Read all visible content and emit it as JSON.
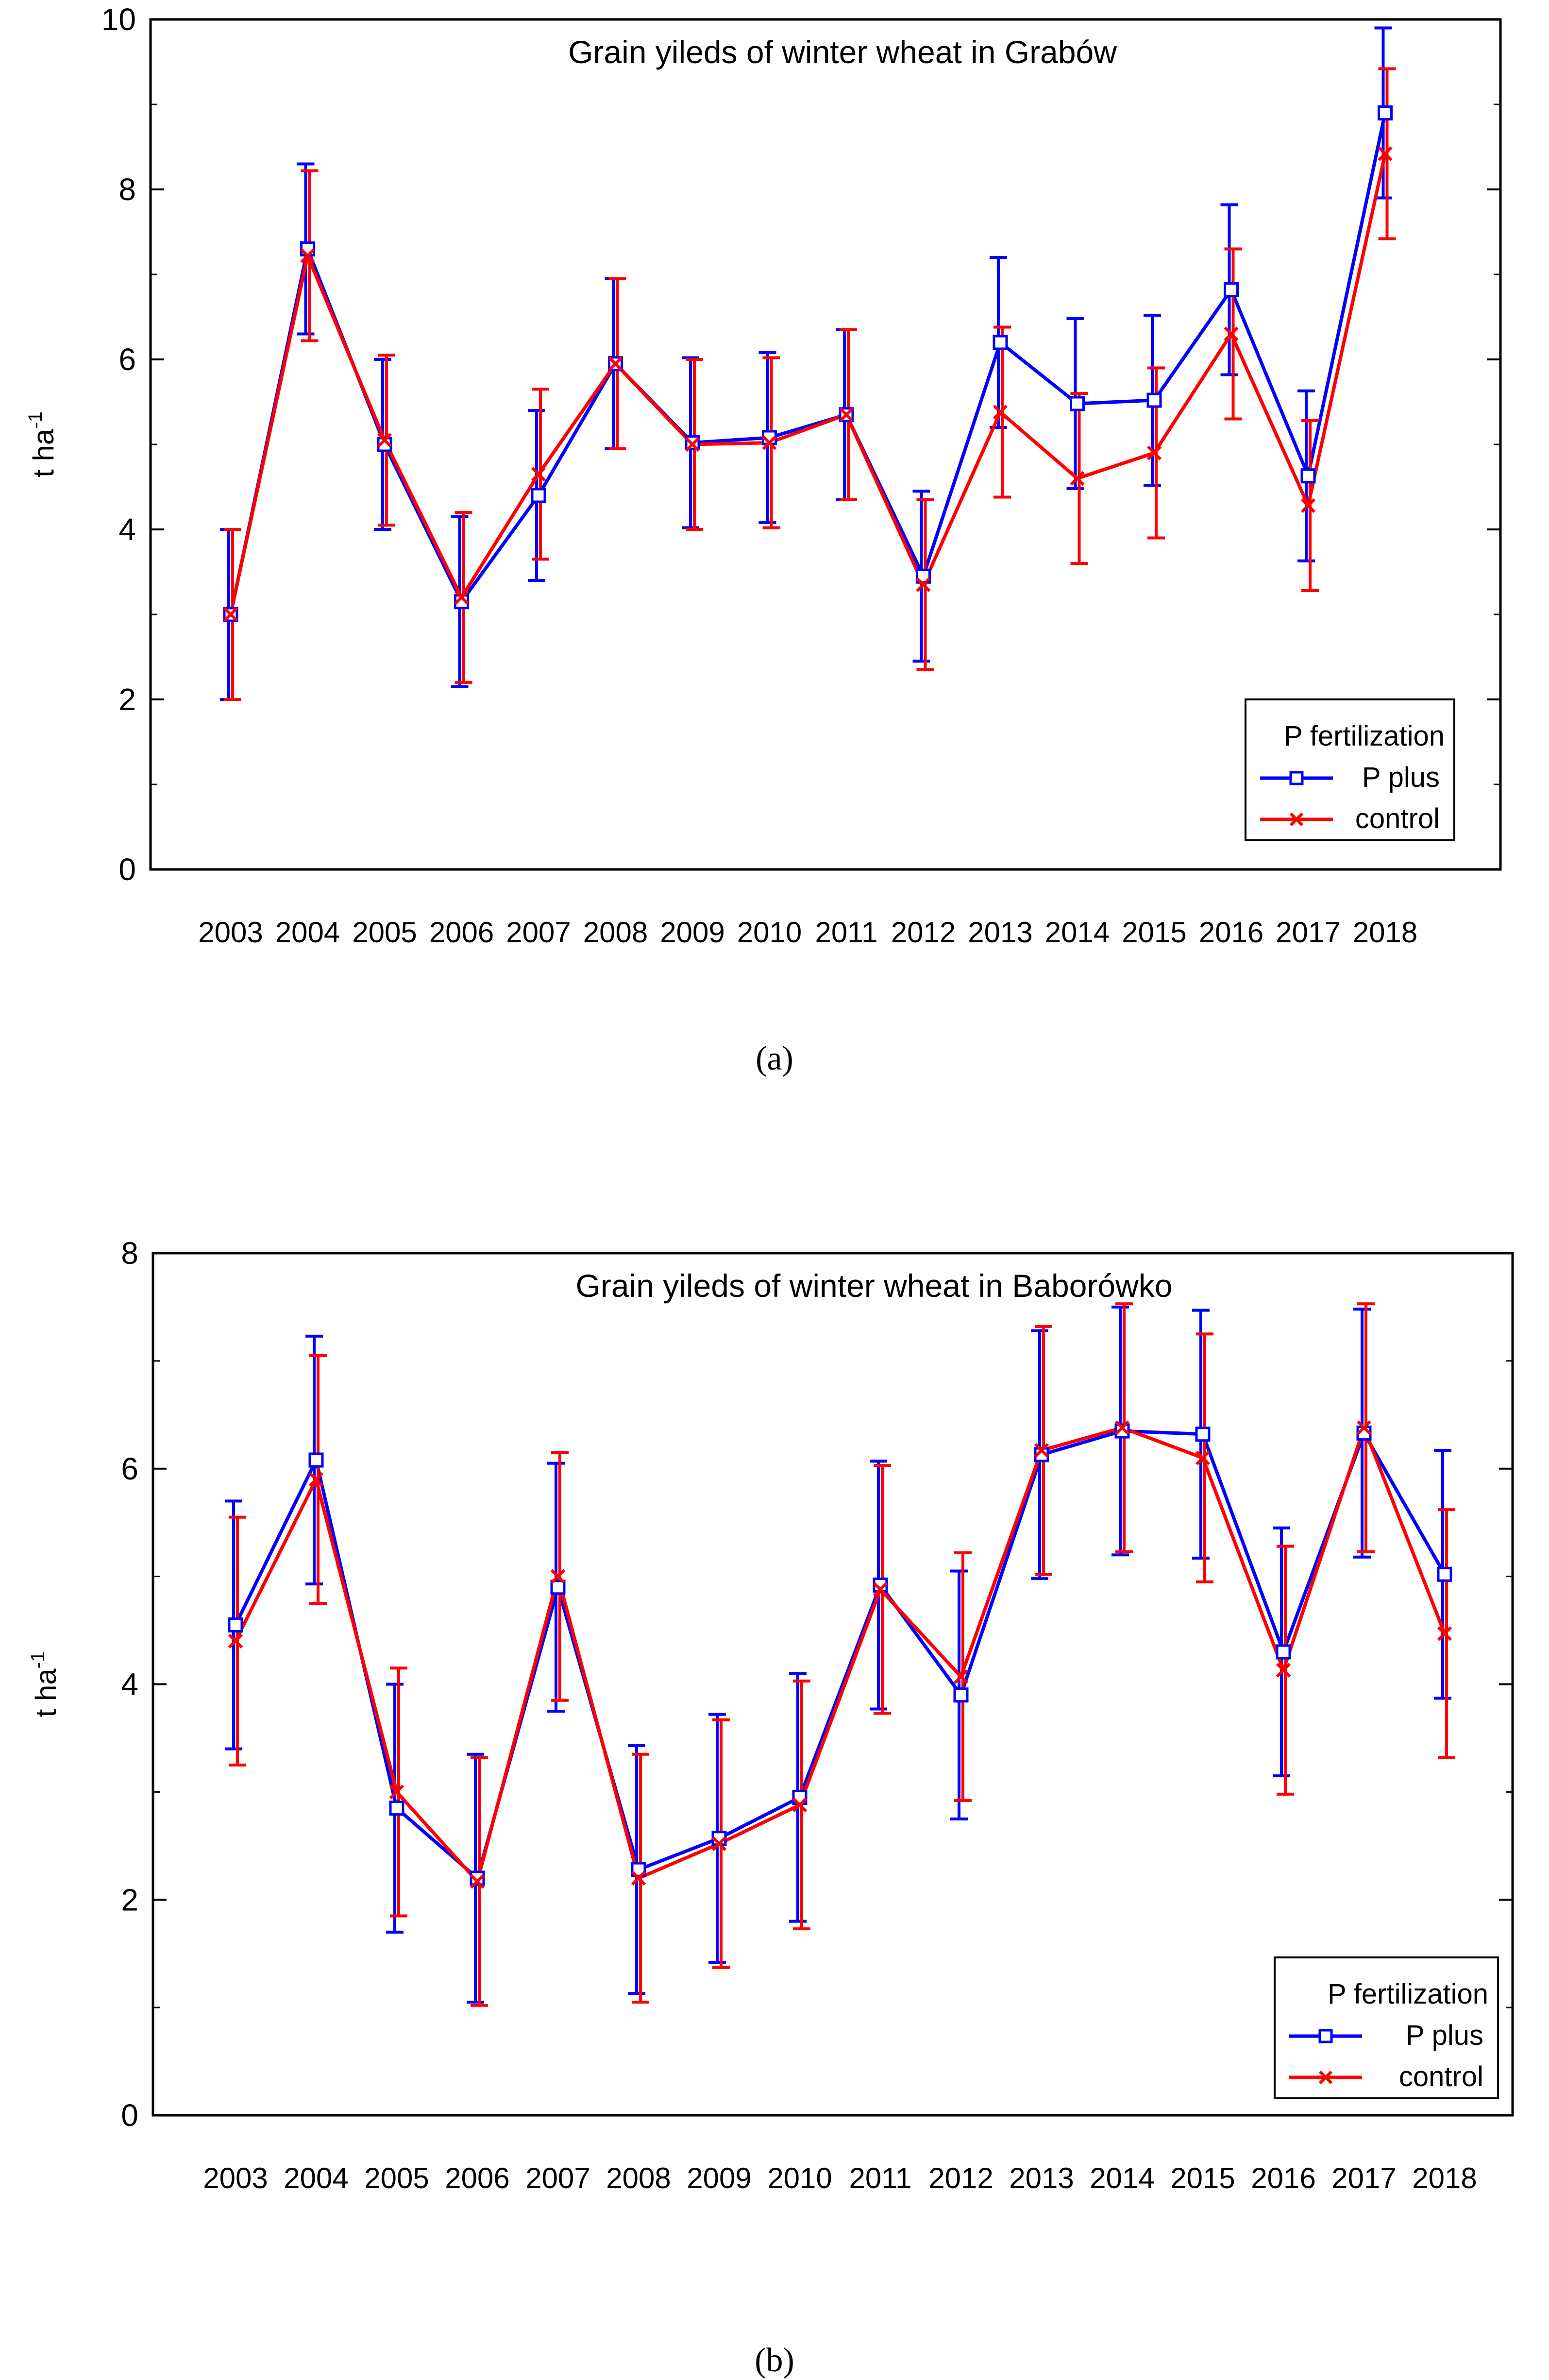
{
  "figure": {
    "caption_a": "(a)",
    "caption_b": "(b)"
  },
  "chart_data": [
    {
      "type": "line",
      "title": "Grain yileds of winter wheat in Grabów",
      "xlabel": "",
      "ylabel": "t ha",
      "ylabel_sup": "-1",
      "ylim": [
        0,
        10
      ],
      "yticks": [
        0,
        2,
        4,
        6,
        8,
        10
      ],
      "grid": false,
      "legend": {
        "title": "P fertilization",
        "position": "bottom-right"
      },
      "categories": [
        "2003",
        "2004",
        "2005",
        "2006",
        "2007",
        "2008",
        "2009",
        "2010",
        "2011",
        "2012",
        "2013",
        "2014",
        "2015",
        "2016",
        "2017",
        "2018"
      ],
      "series": [
        {
          "name": "P plus",
          "color": "#0000ff",
          "marker": "square",
          "values": [
            3.0,
            7.3,
            5.0,
            3.15,
            4.4,
            5.95,
            5.02,
            5.08,
            5.35,
            3.45,
            6.2,
            5.48,
            5.52,
            6.82,
            4.63,
            8.9
          ],
          "error": 1.0
        },
        {
          "name": "control",
          "color": "#ff0000",
          "marker": "x",
          "values": [
            3.0,
            7.22,
            5.05,
            3.2,
            4.65,
            5.95,
            5.0,
            5.02,
            5.35,
            3.35,
            5.38,
            4.6,
            4.9,
            6.3,
            4.28,
            8.42
          ],
          "error": 1.0
        }
      ]
    },
    {
      "type": "line",
      "title": "Grain yileds of winter wheat in Baborówko",
      "xlabel": "",
      "ylabel": "t ha",
      "ylabel_sup": "-1",
      "ylim": [
        0,
        8
      ],
      "yticks": [
        0,
        2,
        4,
        6,
        8
      ],
      "grid": false,
      "legend": {
        "title": "P fertilization",
        "position": "bottom-right"
      },
      "categories": [
        "2003",
        "2004",
        "2005",
        "2006",
        "2007",
        "2008",
        "2009",
        "2010",
        "2011",
        "2012",
        "2013",
        "2014",
        "2015",
        "2016",
        "2017",
        "2018"
      ],
      "series": [
        {
          "name": "P plus",
          "color": "#0000ff",
          "marker": "square",
          "values": [
            4.55,
            6.08,
            2.85,
            2.2,
            4.9,
            2.28,
            2.57,
            2.95,
            4.92,
            3.9,
            6.13,
            6.35,
            6.32,
            4.3,
            6.33,
            5.02
          ],
          "error": 1.15
        },
        {
          "name": "control",
          "color": "#ff0000",
          "marker": "x",
          "values": [
            4.4,
            5.9,
            3.0,
            2.17,
            5.0,
            2.2,
            2.52,
            2.88,
            4.88,
            4.07,
            6.17,
            6.38,
            6.1,
            4.13,
            6.38,
            4.47
          ],
          "error": 1.15
        }
      ]
    }
  ]
}
